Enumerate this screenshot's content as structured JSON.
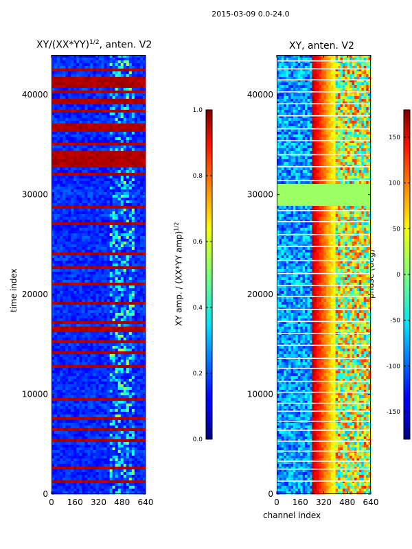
{
  "chart_data": {
    "suptitle": "2015-03-09 0.0-24.0",
    "panels": [
      {
        "type": "heatmap",
        "title": "XY/(XX*YY)",
        "title_exponent": "1/2",
        "title_suffix": ", anten. V2",
        "xlabel": "",
        "ylabel": "time index",
        "xlim": [
          0,
          640
        ],
        "ylim": [
          0,
          44000
        ],
        "xticks": [
          "0",
          "160",
          "320",
          "480",
          "640"
        ],
        "yticks": [
          "0",
          "10000",
          "20000",
          "30000",
          "40000"
        ],
        "colormap": "jet",
        "colorbar": {
          "label": "XY amp. / (XX*YY amp)",
          "label_exponent": "1/2",
          "range": [
            0.0,
            1.0
          ],
          "ticks": [
            "0.0",
            "0.2",
            "0.4",
            "0.6",
            "0.8",
            "1.0"
          ]
        },
        "saturated_time_bands": [
          [
            1200,
            1400
          ],
          [
            2600,
            2700
          ],
          [
            5200,
            5500
          ],
          [
            6200,
            6500
          ],
          [
            7400,
            7600
          ],
          [
            9300,
            9500
          ],
          [
            11200,
            11400
          ],
          [
            12700,
            12900
          ],
          [
            14000,
            14200
          ],
          [
            15200,
            15400
          ],
          [
            16300,
            16700
          ],
          [
            17000,
            17200
          ],
          [
            19000,
            19200
          ],
          [
            21000,
            21200
          ],
          [
            22500,
            22700
          ],
          [
            24000,
            24200
          ],
          [
            25500,
            25700
          ],
          [
            27000,
            27300
          ],
          [
            28500,
            28900
          ],
          [
            32000,
            32200
          ],
          [
            32700,
            34500
          ],
          [
            35000,
            35300
          ],
          [
            36300,
            37000
          ],
          [
            38100,
            38400
          ],
          [
            39000,
            39700
          ],
          [
            40100,
            40400
          ],
          [
            40800,
            41700
          ],
          [
            42300,
            42600
          ]
        ],
        "bright_channel_range": [
          400,
          640
        ]
      },
      {
        "type": "heatmap",
        "title": "XY, anten. V2",
        "xlabel": "channel index",
        "ylabel": "",
        "xlim": [
          0,
          640
        ],
        "ylim": [
          0,
          44000
        ],
        "xticks": [
          "0",
          "160",
          "320",
          "480",
          "640"
        ],
        "yticks": [
          "0",
          "10000",
          "20000",
          "30000",
          "40000"
        ],
        "colormap": "jet",
        "colorbar": {
          "label": "phase (deg)",
          "range": [
            -180,
            180
          ],
          "ticks": [
            "-150",
            "-100",
            "-50",
            "0",
            "50",
            "100",
            "150"
          ]
        },
        "phase_ramp_channels": [
          240,
          400
        ],
        "constant_time_band": [
          29000,
          31000
        ],
        "constant_band_phase": 10,
        "white_gap_times": [
          1300,
          2500,
          3300,
          4300,
          5300,
          6400,
          7300,
          8300,
          9100,
          10200,
          11300,
          12600,
          13600,
          14900,
          16100,
          17300,
          18500,
          19800,
          20900,
          22100,
          23400,
          24800,
          26000,
          27300,
          28400,
          31400,
          32800,
          34000,
          35400,
          36600,
          37900,
          39100,
          40300,
          41500,
          42600,
          43400
        ]
      }
    ]
  }
}
